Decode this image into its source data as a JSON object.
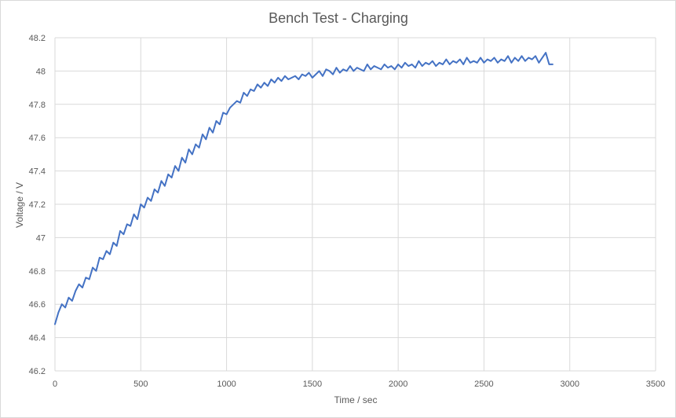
{
  "chart_data": {
    "type": "line",
    "title": "Bench Test - Charging",
    "xlabel": "Time / sec",
    "ylabel": "Voltage / V",
    "xlim": [
      0,
      3500
    ],
    "ylim": [
      46.2,
      48.2
    ],
    "xticks": [
      0,
      500,
      1000,
      1500,
      2000,
      2500,
      3000,
      3500
    ],
    "yticks": [
      46.2,
      46.4,
      46.6,
      46.8,
      47,
      47.2,
      47.4,
      47.6,
      47.8,
      48,
      48.2
    ],
    "xtick_labels": [
      "0",
      "500",
      "1000",
      "1500",
      "2000",
      "2500",
      "3000",
      "3500"
    ],
    "ytick_labels": [
      "46.2",
      "46.4",
      "46.6",
      "46.8",
      "47",
      "47.2",
      "47.4",
      "47.6",
      "47.8",
      "48",
      "48.2"
    ],
    "grid": true,
    "legend": "none",
    "series": [
      {
        "color": "#4472c4",
        "x": [
          0,
          20,
          40,
          60,
          80,
          100,
          120,
          140,
          160,
          180,
          200,
          220,
          240,
          260,
          280,
          300,
          320,
          340,
          360,
          380,
          400,
          420,
          440,
          460,
          480,
          500,
          520,
          540,
          560,
          580,
          600,
          620,
          640,
          660,
          680,
          700,
          720,
          740,
          760,
          780,
          800,
          820,
          840,
          860,
          880,
          900,
          920,
          940,
          960,
          980,
          1000,
          1020,
          1040,
          1060,
          1080,
          1100,
          1120,
          1140,
          1160,
          1180,
          1200,
          1220,
          1240,
          1260,
          1280,
          1300,
          1320,
          1340,
          1360,
          1380,
          1400,
          1420,
          1440,
          1460,
          1480,
          1500,
          1520,
          1540,
          1560,
          1580,
          1600,
          1620,
          1640,
          1660,
          1680,
          1700,
          1720,
          1740,
          1760,
          1780,
          1800,
          1820,
          1840,
          1860,
          1880,
          1900,
          1920,
          1940,
          1960,
          1980,
          2000,
          2020,
          2040,
          2060,
          2080,
          2100,
          2120,
          2140,
          2160,
          2180,
          2200,
          2220,
          2240,
          2260,
          2280,
          2300,
          2320,
          2340,
          2360,
          2380,
          2400,
          2420,
          2440,
          2460,
          2480,
          2500,
          2520,
          2540,
          2560,
          2580,
          2600,
          2620,
          2640,
          2660,
          2680,
          2700,
          2720,
          2740,
          2760,
          2780,
          2800,
          2820,
          2840,
          2860,
          2880,
          2900
        ],
        "values": [
          46.48,
          46.55,
          46.6,
          46.58,
          46.64,
          46.62,
          46.68,
          46.72,
          46.7,
          46.76,
          46.75,
          46.82,
          46.8,
          46.88,
          46.87,
          46.92,
          46.9,
          46.97,
          46.95,
          47.04,
          47.02,
          47.08,
          47.07,
          47.14,
          47.11,
          47.2,
          47.18,
          47.24,
          47.22,
          47.29,
          47.27,
          47.34,
          47.31,
          47.38,
          47.36,
          47.43,
          47.4,
          47.48,
          47.45,
          47.53,
          47.5,
          47.56,
          47.54,
          47.62,
          47.59,
          47.66,
          47.63,
          47.7,
          47.68,
          47.75,
          47.74,
          47.78,
          47.8,
          47.82,
          47.81,
          47.87,
          47.85,
          47.89,
          47.88,
          47.92,
          47.9,
          47.93,
          47.91,
          47.95,
          47.93,
          47.96,
          47.94,
          47.97,
          47.95,
          47.96,
          47.97,
          47.95,
          47.98,
          47.97,
          47.99,
          47.96,
          47.98,
          48.0,
          47.97,
          48.01,
          48.0,
          47.98,
          48.02,
          47.99,
          48.01,
          48.0,
          48.03,
          48.0,
          48.02,
          48.01,
          48.0,
          48.04,
          48.01,
          48.03,
          48.02,
          48.01,
          48.04,
          48.02,
          48.03,
          48.01,
          48.04,
          48.02,
          48.05,
          48.03,
          48.04,
          48.02,
          48.06,
          48.03,
          48.05,
          48.04,
          48.06,
          48.03,
          48.05,
          48.04,
          48.07,
          48.04,
          48.06,
          48.05,
          48.07,
          48.04,
          48.08,
          48.05,
          48.06,
          48.05,
          48.08,
          48.05,
          48.07,
          48.06,
          48.08,
          48.05,
          48.07,
          48.06,
          48.09,
          48.05,
          48.08,
          48.06,
          48.09,
          48.06,
          48.08,
          48.07,
          48.09,
          48.05,
          48.08,
          48.11,
          48.04,
          48.04
        ]
      }
    ]
  }
}
